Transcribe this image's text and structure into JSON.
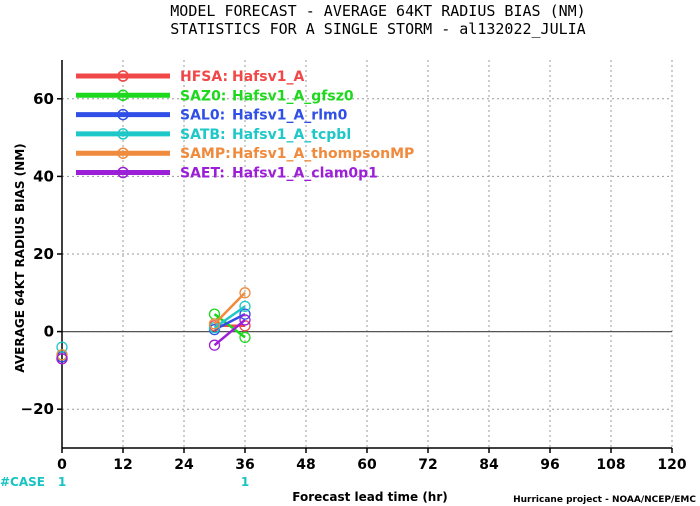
{
  "title_line1": "MODEL FORECAST - AVERAGE 64KT RADIUS BIAS (NM)",
  "title_line2": "STATISTICS FOR A SINGLE STORM - al132022_JULIA",
  "credit": "Hurricane project - NOAA/NCEP/EMC",
  "case_label": "#CASE",
  "chart_data": {
    "type": "line",
    "title": "MODEL FORECAST - AVERAGE 64KT RADIUS BIAS (NM)",
    "subtitle": "STATISTICS FOR A SINGLE STORM - al132022_JULIA",
    "xlabel": "Forecast lead time (hr)",
    "ylabel": "AVERAGE 64KT RADIUS BIAS (NM)",
    "xlim": [
      0,
      120
    ],
    "ylim": [
      -30,
      70
    ],
    "xticks": [
      0,
      12,
      24,
      36,
      48,
      60,
      72,
      84,
      96,
      108,
      120
    ],
    "yticks": [
      -20,
      0,
      20,
      40,
      60
    ],
    "grid": true,
    "legend_position": "top-left",
    "zero_line": true,
    "case_counts": [
      {
        "x": 0,
        "label": "1"
      },
      {
        "x": 36,
        "label": "1"
      }
    ],
    "series": [
      {
        "name": "HFSA:",
        "model": "Hafsv1_A",
        "color": "#f04848",
        "points": [
          [
            0,
            -7
          ],
          [
            30,
            1.5
          ],
          [
            36,
            1.5
          ]
        ]
      },
      {
        "name": "SAZ0:",
        "model": "Hafsv1_A_gfsz0",
        "color": "#1ed81e",
        "points": [
          [
            0,
            -6
          ],
          [
            30,
            4.5
          ],
          [
            36,
            -1.5
          ]
        ]
      },
      {
        "name": "SAL0:",
        "model": "Hafsv1_A_rlm0",
        "color": "#2f4fe6",
        "points": [
          [
            0,
            -6.5
          ],
          [
            30,
            0.5
          ],
          [
            36,
            4.5
          ]
        ]
      },
      {
        "name": "SATB:",
        "model": "Hafsv1_A_tcpbl",
        "color": "#1ec8c8",
        "points": [
          [
            0,
            -4
          ],
          [
            30,
            1
          ],
          [
            36,
            6.5
          ]
        ]
      },
      {
        "name": "SAMP:",
        "model": "Hafsv1_A_thompsonMP",
        "color": "#f08a3c",
        "points": [
          [
            0,
            -6
          ],
          [
            30,
            2
          ],
          [
            36,
            10
          ]
        ]
      },
      {
        "name": "SAET:",
        "model": "Hafsv1_A_clam0p1",
        "color": "#9b1fd6",
        "points": [
          [
            0,
            -7
          ],
          [
            30,
            -3.5
          ],
          [
            36,
            3
          ]
        ]
      }
    ]
  }
}
